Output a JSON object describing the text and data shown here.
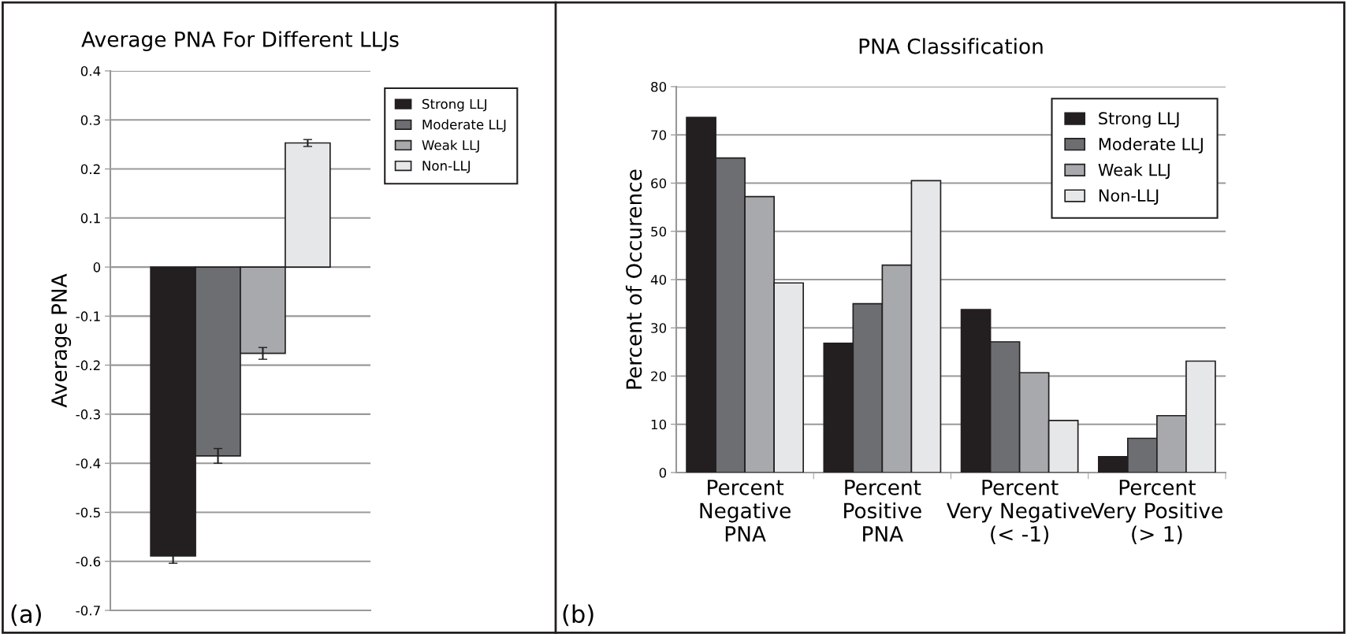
{
  "chart_data": [
    {
      "type": "bar",
      "title": "Average PNA For Different LLJs",
      "ylabel": "Average PNA",
      "categories": [
        null
      ],
      "ylim": [
        -0.7,
        0.4
      ],
      "yticks": [
        -0.7,
        -0.6,
        -0.5,
        -0.4,
        -0.3,
        -0.2,
        -0.1,
        0,
        0.1,
        0.2,
        0.3,
        0.4
      ],
      "grid": "y",
      "legend": "right",
      "annotations": [
        "(a)"
      ],
      "series": [
        {
          "name": "Strong LLJ",
          "color": "#231f20",
          "values": [
            -0.589
          ],
          "errors": [
            0.015
          ]
        },
        {
          "name": "Moderate LLJ",
          "color": "#6d6e71",
          "values": [
            -0.385
          ],
          "errors": [
            0.015
          ]
        },
        {
          "name": "Weak LLJ",
          "color": "#a7a9ac",
          "values": [
            -0.176
          ],
          "errors": [
            0.012
          ]
        },
        {
          "name": "Non-LLJ",
          "color": "#e6e7e8",
          "values": [
            0.253
          ],
          "errors": [
            0.007
          ]
        }
      ]
    },
    {
      "type": "bar",
      "title": "PNA Classification",
      "ylabel": "Percent of Occurence",
      "categories": [
        "Percent\nNegative\nPNA",
        "Percent\nPositive\nPNA",
        "Percent\nVery Negative\n(< -1)",
        "Percent\nVery Positive\n(> 1)"
      ],
      "ylim": [
        0,
        80
      ],
      "yticks": [
        0,
        10,
        20,
        30,
        40,
        50,
        60,
        70,
        80
      ],
      "grid": "y",
      "legend": "top right",
      "annotations": [
        "(b)"
      ],
      "series": [
        {
          "name": "Strong LLJ",
          "color": "#231f20",
          "values": [
            73.6,
            26.8,
            33.8,
            3.3
          ]
        },
        {
          "name": "Moderate LLJ",
          "color": "#6d6e71",
          "values": [
            65.2,
            35.0,
            27.1,
            7.1
          ]
        },
        {
          "name": "Weak LLJ",
          "color": "#a7a9ac",
          "values": [
            57.2,
            43.0,
            20.7,
            11.8
          ]
        },
        {
          "name": "Non-LLJ",
          "color": "#e6e7e8",
          "values": [
            39.3,
            60.5,
            10.8,
            23.1
          ]
        }
      ]
    }
  ]
}
